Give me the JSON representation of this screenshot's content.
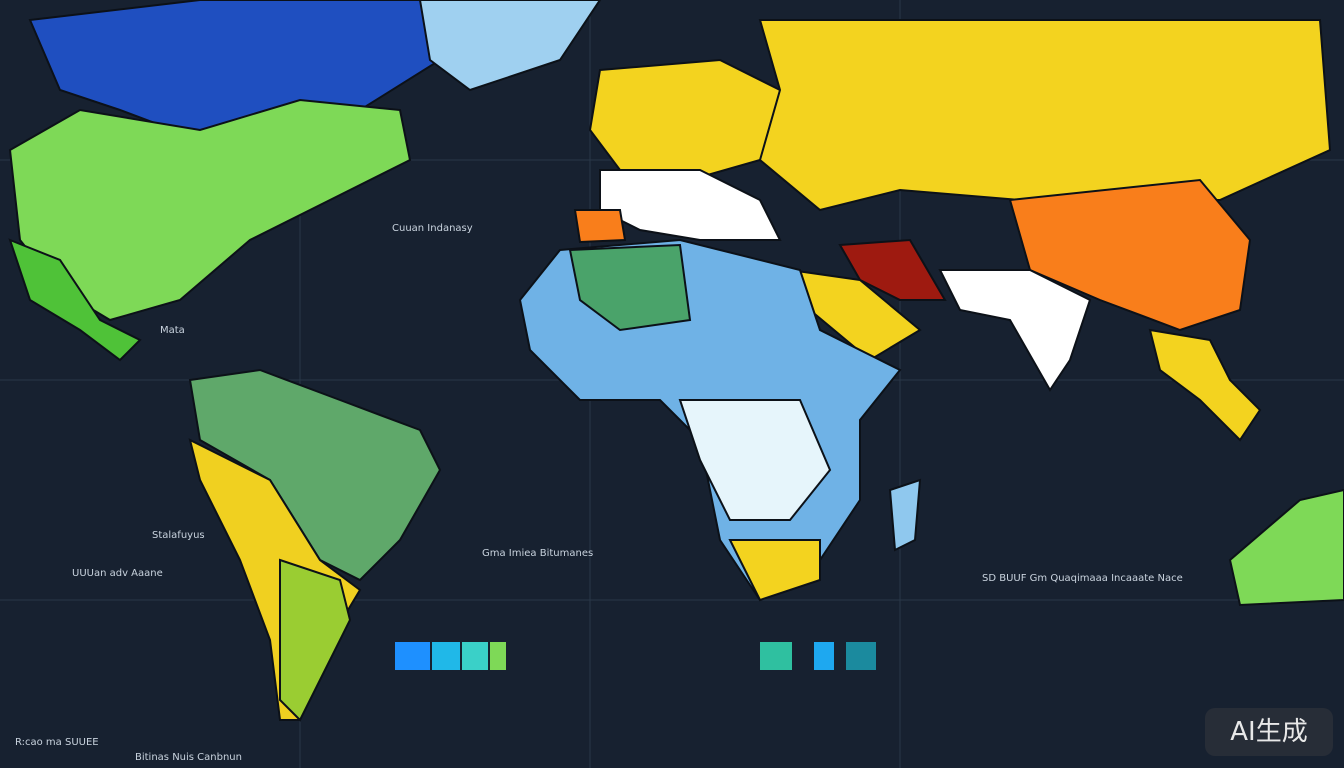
{
  "labels": [
    "Cuuan Indanasy",
    "Mata",
    "Stalafuyus",
    "UUUan adv Aaane",
    "Gma Imiea Bitumanes",
    "SD BUUF Gm Quaqimaaa Incaaate Nace",
    "R:cao ma SUUEE",
    "Bitinas Nuis Canbnun"
  ],
  "watermark": "AI生成"
}
